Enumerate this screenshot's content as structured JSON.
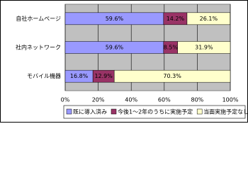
{
  "chart_data": {
    "type": "stacked-bar-horizontal",
    "categories": [
      "自社ホームページ",
      "社内ネットワーク",
      "モバイル機器"
    ],
    "series": [
      {
        "name": "既に導入済み",
        "color": "#9999ff",
        "values": [
          59.6,
          59.6,
          16.8
        ],
        "value_labels": [
          "59.6%",
          "59.6%",
          "16.8%"
        ]
      },
      {
        "name": "今後1～2年のうちに実施予定",
        "color": "#993366",
        "values": [
          14.2,
          8.5,
          12.9
        ],
        "value_labels": [
          "14.2%",
          "8.5%",
          "12.9%"
        ]
      },
      {
        "name": "当面実施予定なし",
        "color": "#ffffcc",
        "values": [
          26.1,
          31.9,
          70.3
        ],
        "value_labels": [
          "26.1%",
          "31.9%",
          "70.3%"
        ]
      }
    ],
    "xlim": [
      0,
      100
    ],
    "xticks": [
      {
        "value": 0,
        "label": "0%"
      },
      {
        "value": 20,
        "label": "20%"
      },
      {
        "value": 40,
        "label": "40%"
      },
      {
        "value": 60,
        "label": "60%"
      },
      {
        "value": 80,
        "label": "80%"
      },
      {
        "value": 100,
        "label": "100%"
      }
    ],
    "grid": true
  }
}
